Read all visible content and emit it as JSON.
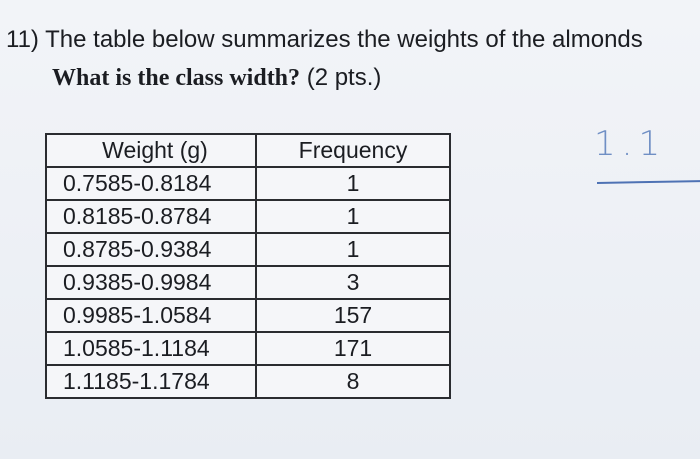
{
  "question": {
    "number": "11)",
    "text": "The table below summarizes the weights of the almonds",
    "prompt": "What is the class width?",
    "points": "(2 pts.)"
  },
  "table": {
    "header": [
      "Weight (g)",
      "Frequency"
    ],
    "rows": [
      [
        "0.7585-0.8184",
        1
      ],
      [
        "0.8185-0.8784",
        1
      ],
      [
        "0.8785-0.9384",
        1
      ],
      [
        "0.9385-0.9984",
        3
      ],
      [
        "0.9985-1.0584",
        157
      ],
      [
        "1.0585-1.1184",
        171
      ],
      [
        "1.1185-1.1784",
        8
      ]
    ]
  },
  "handwriting": {
    "answer": "1.1"
  }
}
